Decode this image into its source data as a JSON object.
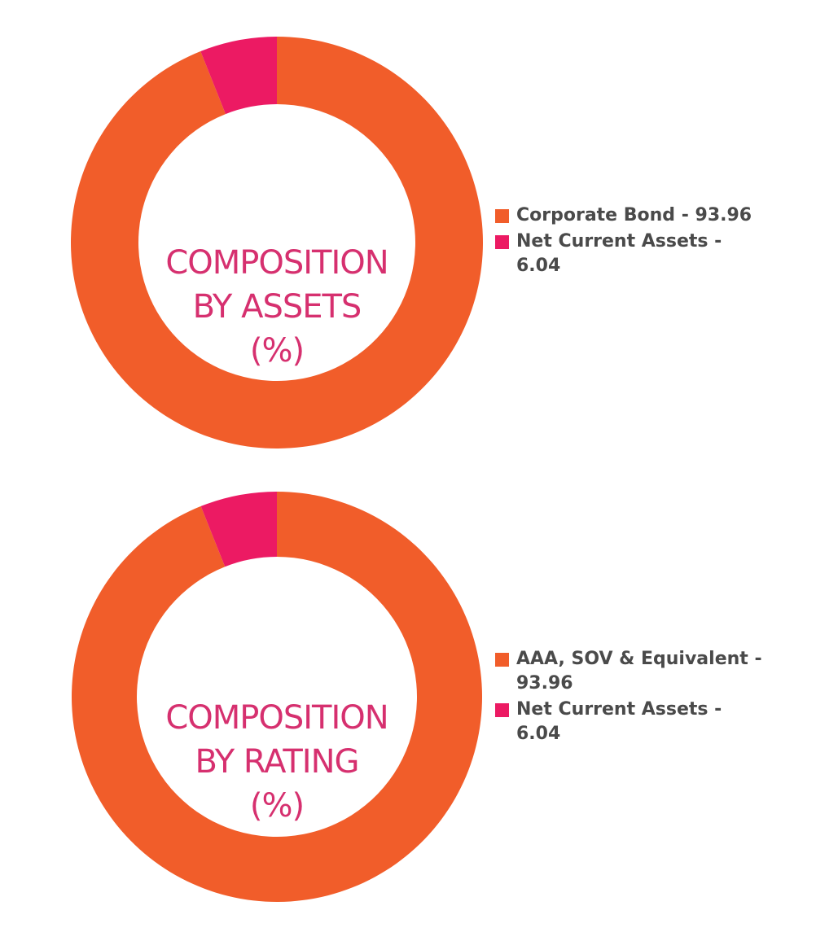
{
  "colors": {
    "orange": "#f15d2a",
    "magenta": "#ec1a63",
    "title_pink": "#d6306f",
    "legend_text": "#4a4a4a"
  },
  "chart_data": [
    {
      "type": "pie",
      "variant": "donut",
      "title_lines": [
        "COMPOSITION",
        "BY ASSETS",
        "(%)"
      ],
      "slices": [
        {
          "label": "Corporate Bond - 93.96",
          "value": 93.96,
          "color": "#f15d2a"
        },
        {
          "label": "Net Current Assets - 6.04",
          "value": 6.04,
          "color": "#ec1a63"
        }
      ],
      "legend_position": "right"
    },
    {
      "type": "pie",
      "variant": "donut",
      "title_lines": [
        "COMPOSITION",
        "BY RATING",
        "(%)"
      ],
      "slices": [
        {
          "label": "AAA, SOV & Equivalent - 93.96",
          "value": 93.96,
          "color": "#f15d2a"
        },
        {
          "label": "Net Current Assets - 6.04",
          "value": 6.04,
          "color": "#ec1a63"
        }
      ],
      "legend_position": "right"
    }
  ]
}
